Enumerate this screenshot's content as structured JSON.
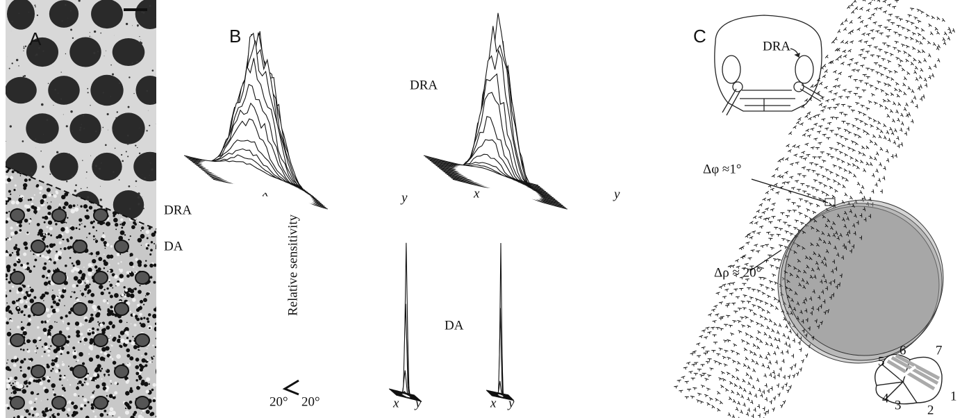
{
  "panel_a": {
    "label": "A",
    "regions": [
      "DRA",
      "DA"
    ]
  },
  "panel_b": {
    "label": "B",
    "dra": {
      "label": "DRA",
      "axes": [
        [
          "x",
          "y"
        ],
        [
          "x",
          "y"
        ]
      ]
    },
    "da": {
      "label": "DA",
      "axes": [
        [
          "x",
          "y"
        ],
        [
          "x",
          "y"
        ]
      ]
    },
    "scale": {
      "axis_label": "Relative sensitivity",
      "angles": [
        "20°",
        "20°"
      ]
    }
  },
  "panel_c": {
    "label": "C",
    "head_label": "DRA",
    "annotations": [
      "Δφ ≈1°",
      "Δρ ≈ 20°"
    ],
    "cell_numbers": [
      "1",
      "2",
      "3",
      "4",
      "5",
      "6",
      "7"
    ]
  }
}
